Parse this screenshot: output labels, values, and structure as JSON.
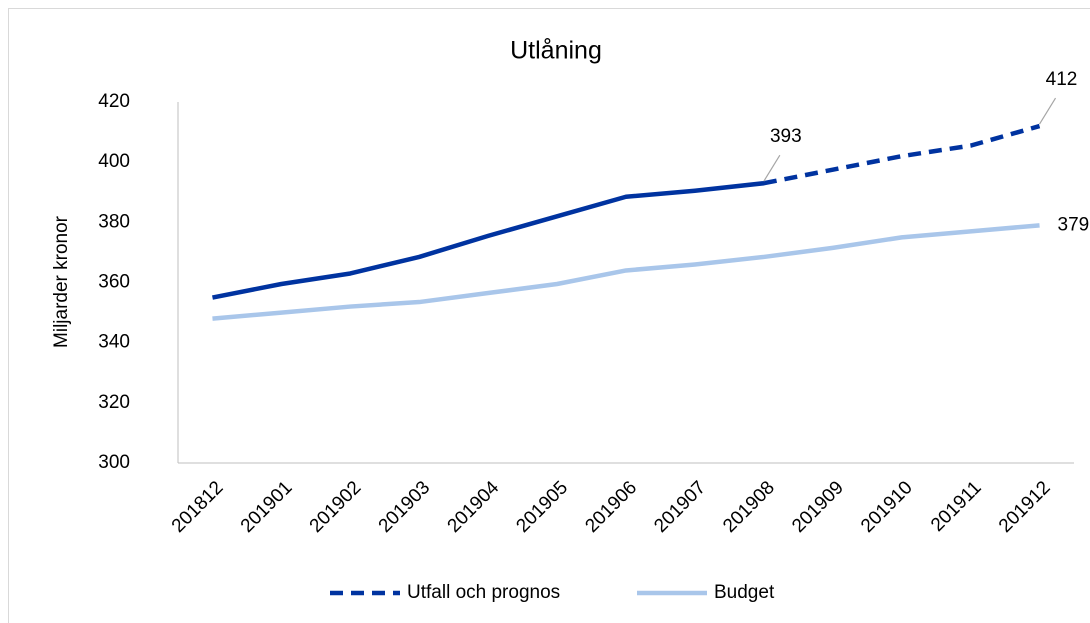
{
  "chart_data": {
    "type": "line",
    "title": "Utlåning",
    "y_label": "Miljarder kronor",
    "categories": [
      "201812",
      "201901",
      "201902",
      "201903",
      "201904",
      "201905",
      "201906",
      "201907",
      "201908",
      "201909",
      "201910",
      "201911",
      "201912"
    ],
    "series": [
      {
        "name": "Utfall och prognos",
        "color": "#0033a0",
        "dash_from_index": 8,
        "values": [
          355,
          359.5,
          363,
          368.5,
          375.5,
          382,
          388.5,
          390.5,
          393,
          397.5,
          402,
          405.5,
          412
        ],
        "labeled_indices": [
          8,
          12
        ]
      },
      {
        "name": "Budget",
        "color": "#a9c6ea",
        "values": [
          348,
          350,
          352,
          353.5,
          356.5,
          359.5,
          364,
          366,
          368.5,
          371.5,
          375,
          377,
          379
        ],
        "labeled_indices": [
          12
        ]
      }
    ],
    "ylim": [
      300,
      420
    ],
    "yticks": [
      300,
      320,
      340,
      360,
      380,
      400,
      420
    ],
    "grid": false,
    "legend": "bottom"
  }
}
